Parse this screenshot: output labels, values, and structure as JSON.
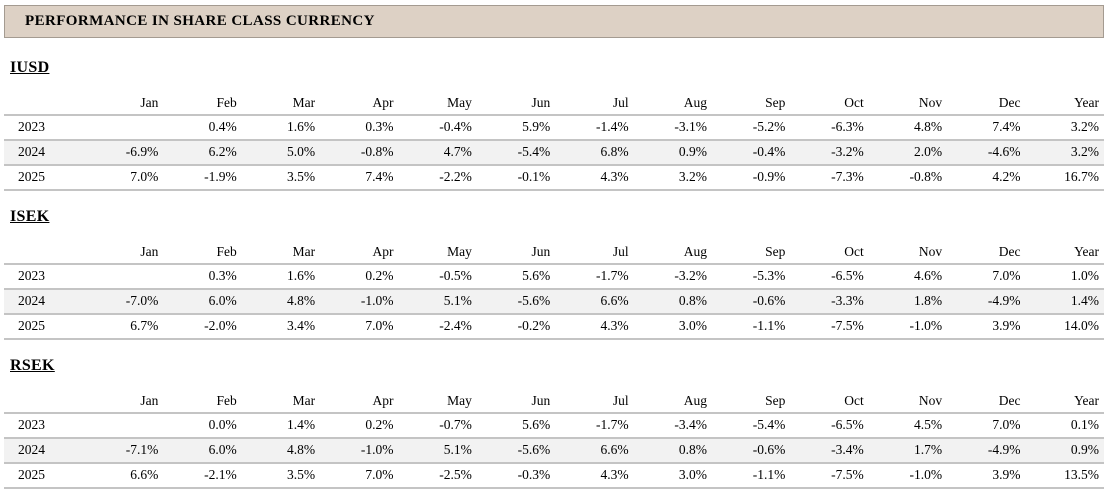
{
  "title": "PERFORMANCE IN SHARE CLASS CURRENCY",
  "columns": [
    "Jan",
    "Feb",
    "Mar",
    "Apr",
    "May",
    "Jun",
    "Jul",
    "Aug",
    "Sep",
    "Oct",
    "Nov",
    "Dec",
    "Year"
  ],
  "sections": [
    {
      "name": "IUSD",
      "rows": [
        {
          "year": "2023",
          "values": [
            "",
            "0.4%",
            "1.6%",
            "0.3%",
            "-0.4%",
            "5.9%",
            "-1.4%",
            "-3.1%",
            "-5.2%",
            "-6.3%",
            "4.8%",
            "7.4%",
            "3.2%"
          ]
        },
        {
          "year": "2024",
          "values": [
            "-6.9%",
            "6.2%",
            "5.0%",
            "-0.8%",
            "4.7%",
            "-5.4%",
            "6.8%",
            "0.9%",
            "-0.4%",
            "-3.2%",
            "2.0%",
            "-4.6%",
            "3.2%"
          ]
        },
        {
          "year": "2025",
          "values": [
            "7.0%",
            "-1.9%",
            "3.5%",
            "7.4%",
            "-2.2%",
            "-0.1%",
            "4.3%",
            "3.2%",
            "-0.9%",
            "-7.3%",
            "-0.8%",
            "4.2%",
            "16.7%"
          ]
        }
      ]
    },
    {
      "name": "ISEK",
      "rows": [
        {
          "year": "2023",
          "values": [
            "",
            "0.3%",
            "1.6%",
            "0.2%",
            "-0.5%",
            "5.6%",
            "-1.7%",
            "-3.2%",
            "-5.3%",
            "-6.5%",
            "4.6%",
            "7.0%",
            "1.0%"
          ]
        },
        {
          "year": "2024",
          "values": [
            "-7.0%",
            "6.0%",
            "4.8%",
            "-1.0%",
            "5.1%",
            "-5.6%",
            "6.6%",
            "0.8%",
            "-0.6%",
            "-3.3%",
            "1.8%",
            "-4.9%",
            "1.4%"
          ]
        },
        {
          "year": "2025",
          "values": [
            "6.7%",
            "-2.0%",
            "3.4%",
            "7.0%",
            "-2.4%",
            "-0.2%",
            "4.3%",
            "3.0%",
            "-1.1%",
            "-7.5%",
            "-1.0%",
            "3.9%",
            "14.0%"
          ]
        }
      ]
    },
    {
      "name": "RSEK",
      "rows": [
        {
          "year": "2023",
          "values": [
            "",
            "0.0%",
            "1.4%",
            "0.2%",
            "-0.7%",
            "5.6%",
            "-1.7%",
            "-3.4%",
            "-5.4%",
            "-6.5%",
            "4.5%",
            "7.0%",
            "0.1%"
          ]
        },
        {
          "year": "2024",
          "values": [
            "-7.1%",
            "6.0%",
            "4.8%",
            "-1.0%",
            "5.1%",
            "-5.6%",
            "6.6%",
            "0.8%",
            "-0.6%",
            "-3.4%",
            "1.7%",
            "-4.9%",
            "0.9%"
          ]
        },
        {
          "year": "2025",
          "values": [
            "6.6%",
            "-2.1%",
            "3.5%",
            "7.0%",
            "-2.5%",
            "-0.3%",
            "4.3%",
            "3.0%",
            "-1.1%",
            "-7.5%",
            "-1.0%",
            "3.9%",
            "13.5%"
          ]
        }
      ]
    }
  ],
  "colors": {
    "header_bg": "#ddd1c5",
    "header_border": "#a49b91",
    "row_stripe": "#f2f2f2",
    "table_line": "#c4c4c4",
    "text": "#000000"
  }
}
